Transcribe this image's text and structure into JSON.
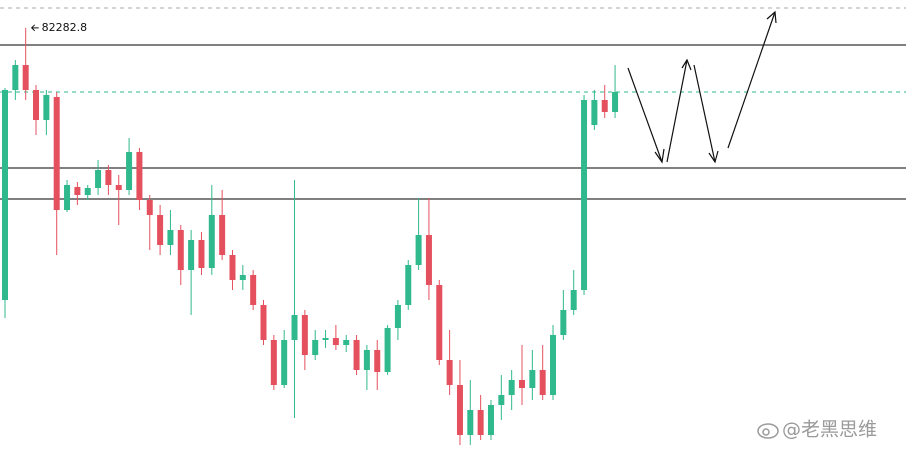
{
  "chart_data": {
    "type": "candlestick",
    "open": [
      78200,
      81350,
      81725,
      81350,
      80900,
      81245,
      79550,
      79895,
      79775,
      79880,
      80150,
      79925,
      79850,
      80420,
      79700,
      79475,
      79025,
      79250,
      78650,
      79100,
      78680,
      79475,
      78875,
      78500,
      78575,
      78125,
      77600,
      76925,
      77600,
      77975,
      77375,
      77600,
      77630,
      77525,
      77600,
      77150,
      77450,
      77120,
      77780,
      78125,
      78725,
      79175,
      78425,
      77300,
      76925,
      76175,
      76550,
      76175,
      76625,
      76775,
      77000,
      76880,
      77150,
      76775,
      77675,
      78050,
      78350,
      80825,
      81200,
      81020
    ],
    "high": [
      81380,
      81800,
      82282.8,
      81425,
      81350,
      81320,
      80000,
      79970,
      79925,
      80300,
      80225,
      80075,
      80630,
      80480,
      79775,
      79625,
      79550,
      79325,
      79250,
      79220,
      79925,
      79850,
      78950,
      78725,
      78650,
      78200,
      77675,
      77750,
      80000,
      78050,
      77750,
      77750,
      77825,
      77675,
      77675,
      77525,
      77600,
      77825,
      78200,
      78800,
      79730,
      79730,
      78500,
      77750,
      77300,
      77000,
      76775,
      76700,
      77075,
      77150,
      77525,
      77450,
      77525,
      77825,
      78350,
      78650,
      81275,
      81350,
      81425,
      81725
    ],
    "low": [
      77930,
      81200,
      81200,
      80675,
      80675,
      78875,
      79520,
      79625,
      79700,
      79775,
      79775,
      79325,
      79775,
      79550,
      78950,
      78875,
      78875,
      78425,
      77975,
      78575,
      78575,
      78800,
      78350,
      78350,
      78050,
      77525,
      76850,
      76880,
      76430,
      77150,
      77300,
      77480,
      77450,
      77420,
      77075,
      76850,
      76850,
      77075,
      77600,
      78050,
      78650,
      78200,
      77225,
      76775,
      76025,
      76025,
      76100,
      76100,
      76400,
      76550,
      76625,
      76700,
      76700,
      76700,
      77600,
      77975,
      78275,
      80750,
      80930,
      80930
    ],
    "close": [
      81350,
      81725,
      81350,
      80900,
      81275,
      79550,
      79925,
      79775,
      79880,
      80150,
      79925,
      79850,
      80420,
      79700,
      79475,
      79025,
      79250,
      78650,
      79100,
      78680,
      79475,
      78875,
      78500,
      78575,
      78125,
      77600,
      76925,
      77600,
      77975,
      77375,
      77600,
      77630,
      77525,
      77600,
      77150,
      77450,
      77120,
      77780,
      78125,
      78725,
      79175,
      78425,
      77300,
      76925,
      76175,
      76550,
      76175,
      76625,
      76775,
      77000,
      76880,
      77150,
      76775,
      77675,
      78050,
      78350,
      81200,
      81200,
      81020,
      81320
    ],
    "up_color": "#2fb98c",
    "down_color": "#e5505e",
    "ylim": [
      75950,
      82700
    ],
    "levels": [
      {
        "value": 82580,
        "color": "#aaaaaa",
        "dashed": true
      },
      {
        "value": 82025,
        "color": "#000000",
        "dashed": false
      },
      {
        "value": 81320,
        "color": "#2fb98c",
        "dashed": true
      },
      {
        "value": 80180,
        "color": "#000000",
        "dashed": false
      },
      {
        "value": 79715,
        "color": "#000000",
        "dashed": false
      }
    ],
    "watermark": "@老黑思维"
  }
}
